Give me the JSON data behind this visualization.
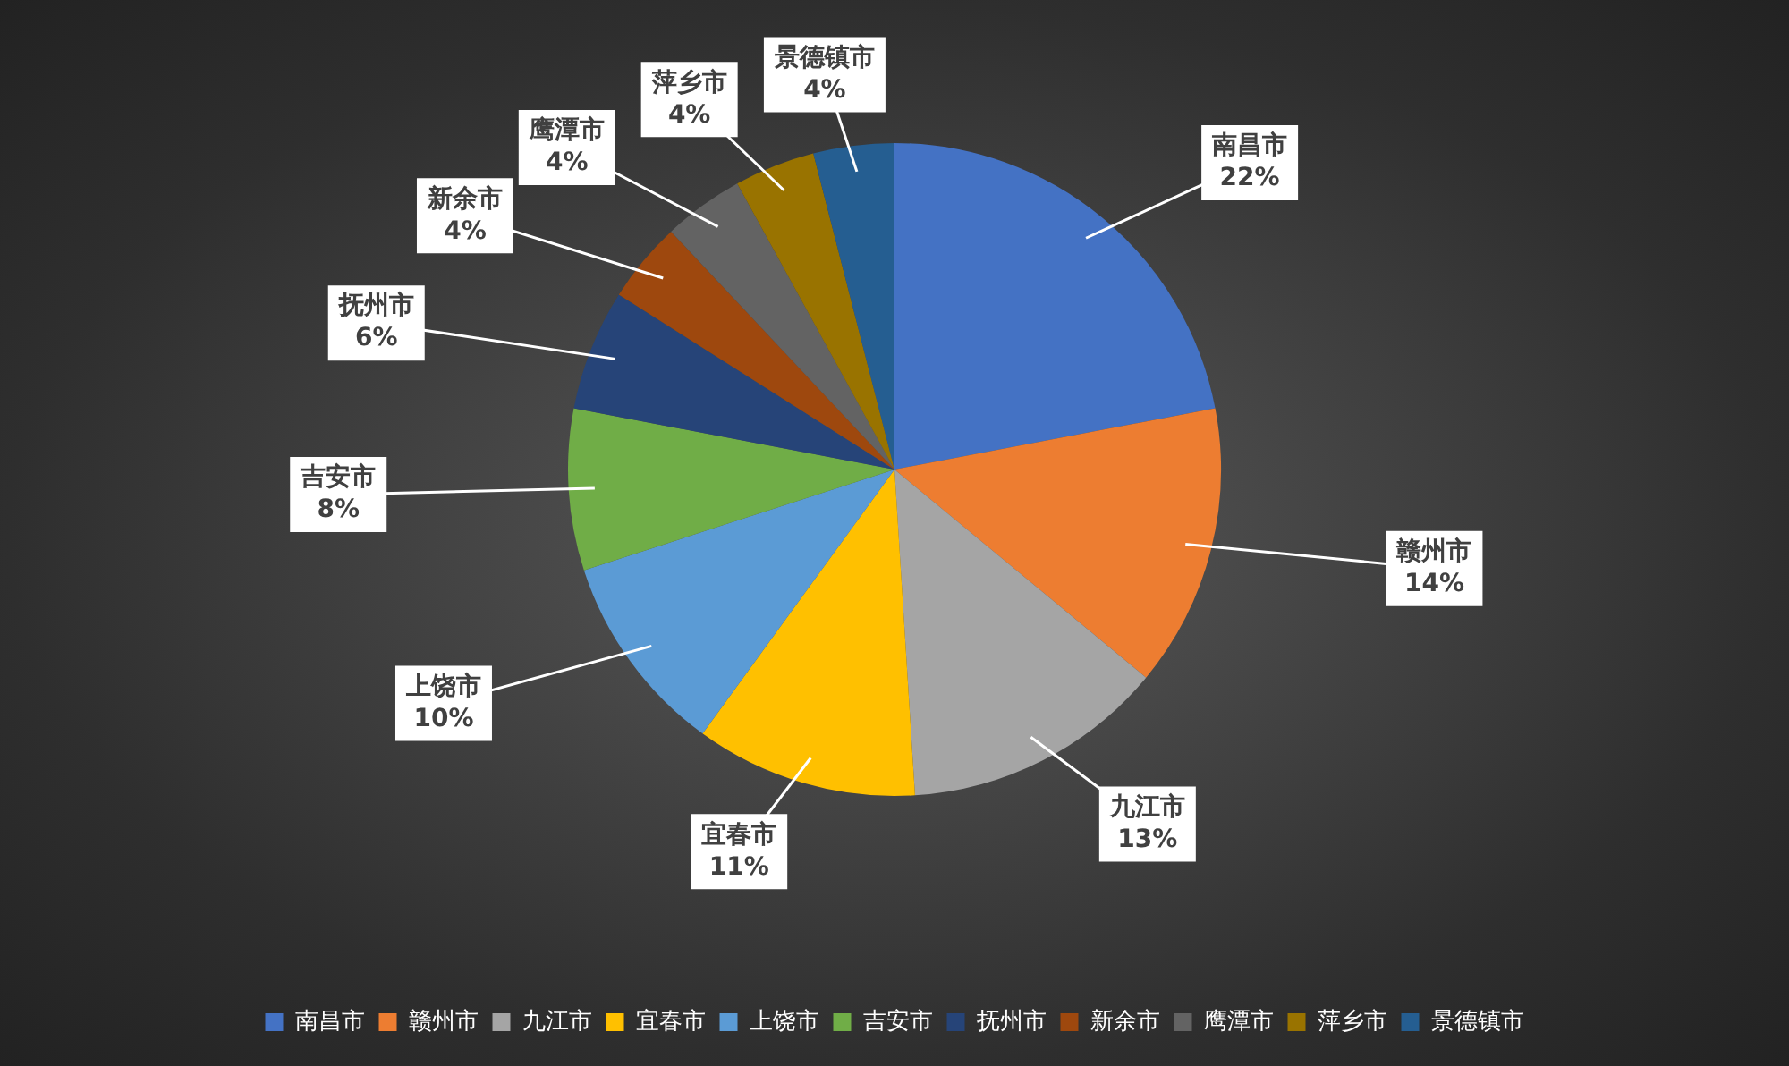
{
  "chart_data": {
    "type": "pie",
    "categories": [
      "南昌市",
      "赣州市",
      "九江市",
      "宜春市",
      "上饶市",
      "吉安市",
      "抚州市",
      "新余市",
      "鹰潭市",
      "萍乡市",
      "景德镇市"
    ],
    "values": [
      22,
      14,
      13,
      11,
      10,
      8,
      6,
      4,
      4,
      4,
      4
    ],
    "value_labels": [
      "22%",
      "14%",
      "13%",
      "11%",
      "10%",
      "8%",
      "6%",
      "4%",
      "4%",
      "4%",
      "4%"
    ],
    "colors": [
      "#4472c4",
      "#ed7d31",
      "#a5a5a5",
      "#ffc000",
      "#5b9bd5",
      "#70ad47",
      "#264478",
      "#9e480e",
      "#636363",
      "#997300",
      "#255e91"
    ],
    "legend": "bottom"
  }
}
